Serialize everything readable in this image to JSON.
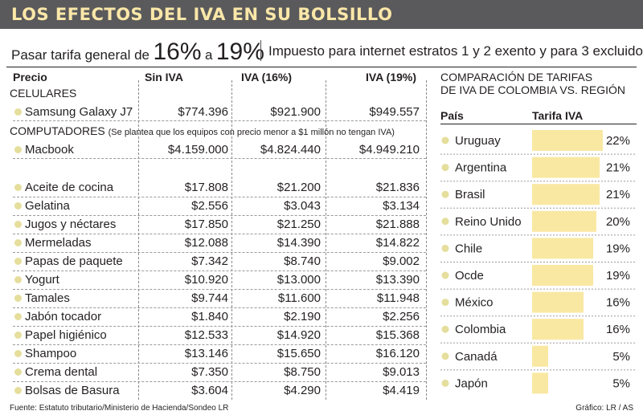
{
  "header": {
    "title": "LOS EFECTOS DEL IVA EN SU BOLSILLO",
    "sub_text": "Pasar tarifa general de",
    "sub_from": "16%",
    "sub_a": "a",
    "sub_to": "19%",
    "sub_right_text": "Impuesto para internet",
    "sub_right_bold": "estratos 1 y 2 exento y para 3 excluido"
  },
  "table": {
    "headers": [
      "Precio",
      "Sin IVA",
      "IVA (16%)",
      "IVA (19%)"
    ],
    "sections": {
      "celulares": "CELULARES",
      "computadores": "COMPUTADORES",
      "computadores_note": "(Se plantea que los equipos con precio menor a $1 millón no tengan IVA)"
    },
    "rows": [
      {
        "name": "Samsung Galaxy J7",
        "sin": "$774.396",
        "iva16": "$921.900",
        "iva19": "$949.557"
      },
      {
        "name": "Macbook",
        "sin": "$4.159.000",
        "iva16": "$4.824.440",
        "iva19": "$4.949.210"
      },
      {
        "name": "Aceite de cocina",
        "sin": "$17.808",
        "iva16": "$21.200",
        "iva19": "$21.836"
      },
      {
        "name": "Gelatina",
        "sin": "$2.556",
        "iva16": "$3.043",
        "iva19": "$3.134"
      },
      {
        "name": "Jugos y néctares",
        "sin": "$17.850",
        "iva16": "$21.250",
        "iva19": "$21.888"
      },
      {
        "name": "Mermeladas",
        "sin": "$12.088",
        "iva16": "$14.390",
        "iva19": "$14.822"
      },
      {
        "name": "Papas de paquete",
        "sin": "$7.342",
        "iva16": "$8.740",
        "iva19": "$9.002"
      },
      {
        "name": "Yogurt",
        "sin": "$10.920",
        "iva16": "$13.000",
        "iva19": "$13.390"
      },
      {
        "name": "Tamales",
        "sin": "$9.744",
        "iva16": "$11.600",
        "iva19": "$11.948"
      },
      {
        "name": "Jabón tocador",
        "sin": "$1.840",
        "iva16": "$2.190",
        "iva19": "$2.256"
      },
      {
        "name": "Papel higiénico",
        "sin": "$12.533",
        "iva16": "$14.920",
        "iva19": "$15.368"
      },
      {
        "name": "Shampoo",
        "sin": "$13.146",
        "iva16": "$15.650",
        "iva19": "$16.120"
      },
      {
        "name": "Crema dental",
        "sin": "$7.350",
        "iva16": "$8.750",
        "iva19": "$9.013"
      },
      {
        "name": "Bolsas de Basura",
        "sin": "$3.604",
        "iva16": "$4.290",
        "iva19": "$4.419"
      }
    ]
  },
  "chart_data": {
    "type": "bar",
    "orientation": "horizontal",
    "title": "COMPARACIÓN DE TARIFAS DE IVA DE COLOMBIA VS. REGIÓN",
    "title_line1": "COMPARACIÓN DE TARIFAS",
    "title_line2": "DE IVA DE COLOMBIA VS. REGIÓN",
    "col_country": "País",
    "col_rate": "Tarifa IVA",
    "categories": [
      "Uruguay",
      "Argentina",
      "Brasil",
      "Reino Unido",
      "Chile",
      "Ocde",
      "México",
      "Colombia",
      "Canadá",
      "Japón"
    ],
    "values": [
      22,
      21,
      21,
      20,
      19,
      19,
      16,
      16,
      5,
      5
    ],
    "labels": [
      "22%",
      "21%",
      "21%",
      "20%",
      "19%",
      "19%",
      "16%",
      "16%",
      "5%",
      "5%"
    ],
    "xlim": [
      0,
      22
    ],
    "grid": false,
    "bar_color": "#f9e8a2",
    "dot_color": "#e5de9c"
  },
  "footer": {
    "source": "Fuente: Estatuto tributario/Ministerio de Hacienda/Sondeo LR",
    "credit": "Gráfico: LR / AS"
  }
}
